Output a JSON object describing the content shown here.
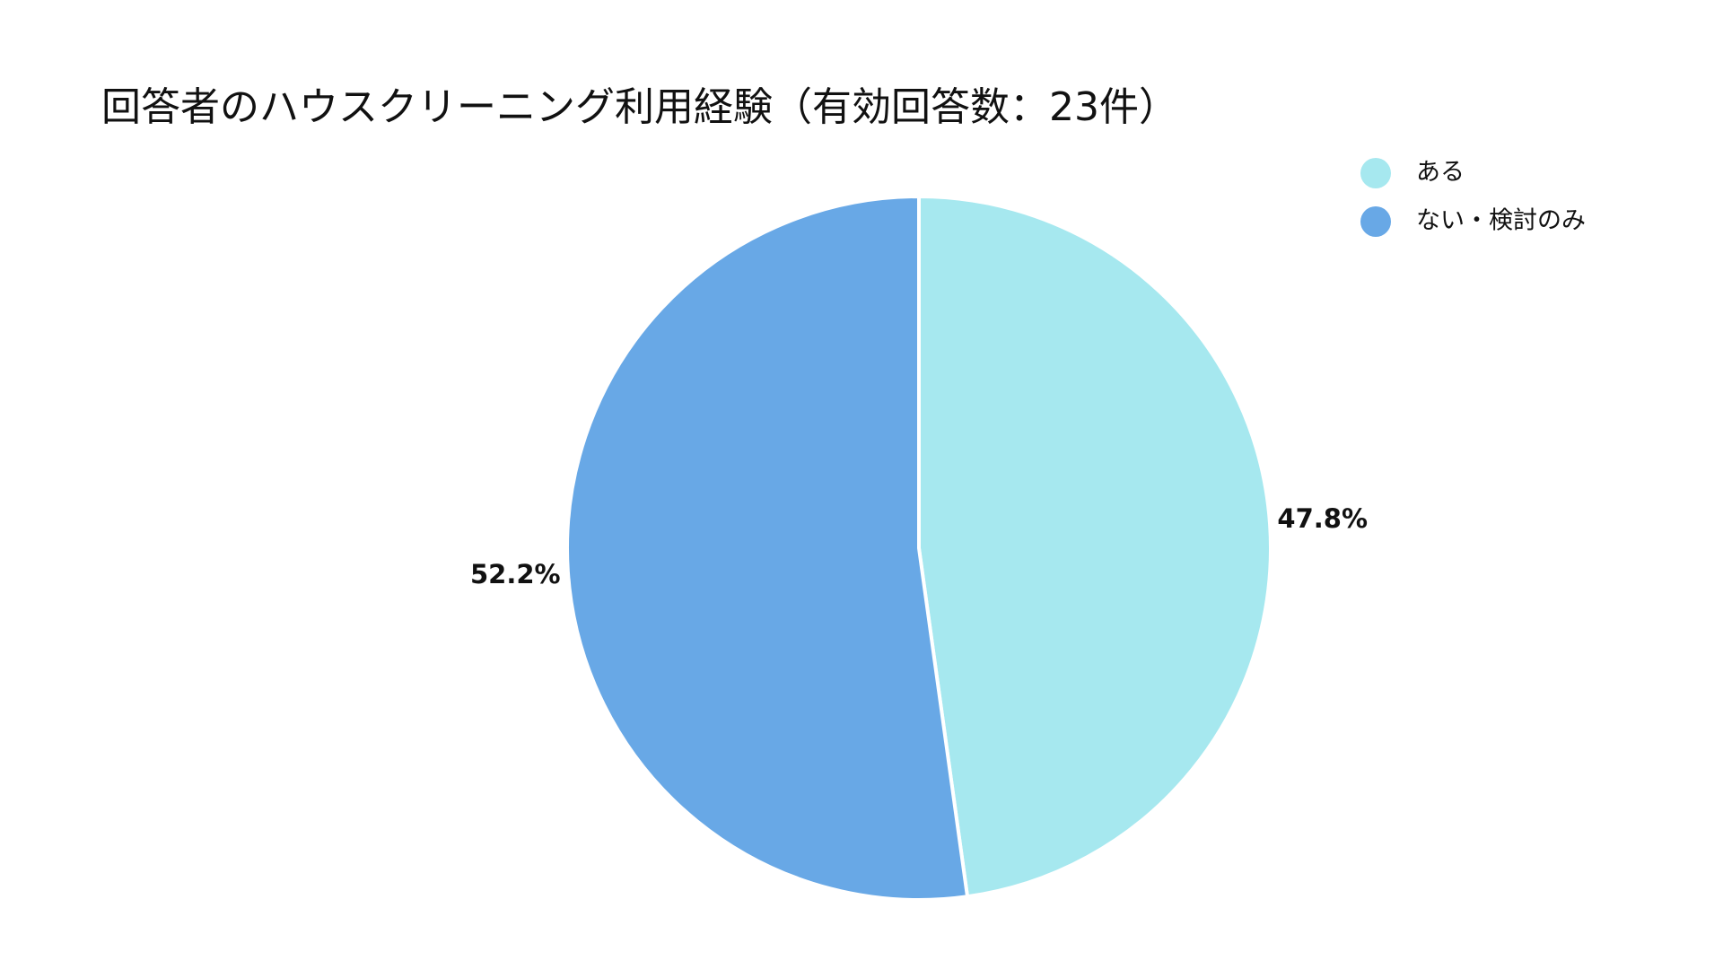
{
  "chart_data": {
    "type": "pie",
    "title": "回答者のハウスクリーニング利用経験（有効回答数：23件）",
    "categories": [
      "ある",
      "ない・検討のみ"
    ],
    "values": [
      47.8,
      52.2
    ],
    "value_labels": [
      "47.8%",
      "52.2%"
    ],
    "colors": [
      "#a6e8ef",
      "#68a8e6"
    ],
    "legend": "top-right"
  }
}
